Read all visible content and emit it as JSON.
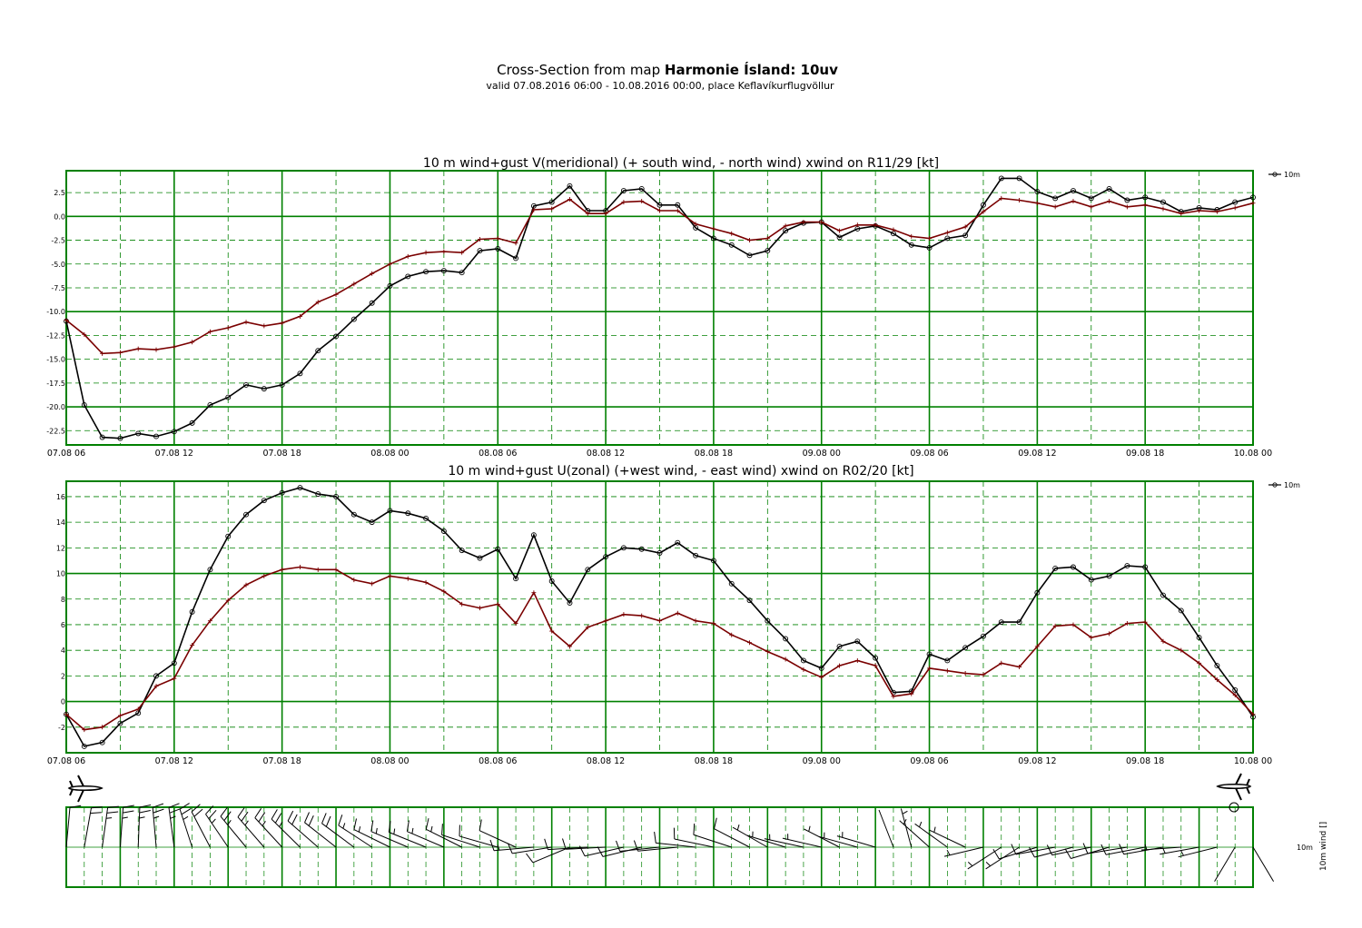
{
  "header": {
    "title_prefix": "Cross-Section from map ",
    "title_strong": "Harmonie Ísland:  10uv",
    "subtitle": "valid 07.08.2016 06:00 - 10.08.2016 00:00, place Keflavíkurflugvöllur"
  },
  "colors": {
    "grid": "#008000",
    "series_black": "#000000",
    "series_red": "#7a0000",
    "background": "#ffffff"
  },
  "time_axis": {
    "tick_labels": [
      "07.08 06",
      "07.08 12",
      "07.08 18",
      "08.08 00",
      "08.08 06",
      "08.08 12",
      "08.08 18",
      "09.08 00",
      "09.08 06",
      "09.08 12",
      "09.08 18",
      "10.08 00"
    ],
    "range_hours": [
      0,
      66
    ],
    "step_hours": 1
  },
  "chart_data": [
    {
      "type": "line",
      "title": "10 m wind+gust V(meridional) (+ south wind, - north wind) xwind on R11/29 [kt]",
      "legend": {
        "label": "10m",
        "placement": "top-right"
      },
      "ylim": [
        -24,
        4.8
      ],
      "yticks": [
        2.5,
        0.0,
        -2.5,
        -5.0,
        -7.5,
        -10.0,
        -12.5,
        -15.0,
        -17.5,
        -20.0,
        -22.5
      ],
      "ytick_labels": [
        "2.5",
        "0.0",
        "-2.5",
        "-5.0",
        "-7.5",
        "-10.0",
        "-12.5",
        "-15.0",
        "-17.5",
        "-20.0",
        "-22.5"
      ],
      "major_hlines": [
        0,
        -10,
        -20
      ],
      "series": [
        {
          "marker": "circle",
          "values": [
            -11.0,
            -19.8,
            -23.2,
            -23.3,
            -22.8,
            -23.1,
            -22.6,
            -21.7,
            -19.8,
            -19.0,
            -17.7,
            -18.1,
            -17.7,
            -16.5,
            -14.1,
            -12.6,
            -10.8,
            -9.1,
            -7.3,
            -6.3,
            -5.8,
            -5.7,
            -5.9,
            -3.6,
            -3.4,
            -4.4,
            1.1,
            1.5,
            3.2,
            0.6,
            0.6,
            2.7,
            2.9,
            1.2,
            1.2,
            -1.2,
            -2.3,
            -3.0,
            -4.1,
            -3.6,
            -1.5,
            -0.7,
            -0.6,
            -2.2,
            -1.3,
            -1.0,
            -1.8,
            -3.0,
            -3.3,
            -2.3,
            -2.0,
            1.2,
            4.0,
            4.0,
            2.6,
            1.9,
            2.7,
            1.9,
            2.9,
            1.7,
            2.0,
            1.5,
            0.5,
            0.9,
            0.7,
            1.5,
            2.0
          ]
        },
        {
          "marker": "plus",
          "values": [
            -10.9,
            -12.4,
            -14.4,
            -14.3,
            -13.9,
            -14.0,
            -13.7,
            -13.2,
            -12.1,
            -11.7,
            -11.1,
            -11.5,
            -11.2,
            -10.5,
            -9.0,
            -8.2,
            -7.1,
            -6.0,
            -5.0,
            -4.2,
            -3.8,
            -3.7,
            -3.8,
            -2.4,
            -2.3,
            -2.8,
            0.7,
            0.8,
            1.8,
            0.3,
            0.3,
            1.5,
            1.6,
            0.6,
            0.6,
            -0.8,
            -1.3,
            -1.8,
            -2.5,
            -2.3,
            -1.0,
            -0.6,
            -0.6,
            -1.5,
            -0.9,
            -0.9,
            -1.4,
            -2.1,
            -2.3,
            -1.7,
            -1.1,
            0.5,
            1.9,
            1.7,
            1.4,
            1.0,
            1.6,
            1.0,
            1.6,
            1.0,
            1.2,
            0.8,
            0.3,
            0.6,
            0.5,
            0.9,
            1.4
          ]
        }
      ]
    },
    {
      "type": "line",
      "title": "10 m wind+gust U(zonal) (+west wind, - east wind) xwind on R02/20 [kt]",
      "legend": {
        "label": "10m",
        "placement": "top-right"
      },
      "ylim": [
        -4,
        17.2
      ],
      "yticks": [
        16,
        14,
        12,
        10,
        8,
        6,
        4,
        2,
        0,
        -2
      ],
      "ytick_labels": [
        "16",
        "14",
        "12",
        "10",
        "8",
        "6",
        "4",
        "2",
        "0",
        "-2"
      ],
      "major_hlines": [
        10,
        0
      ],
      "series": [
        {
          "marker": "circle",
          "values": [
            -1.0,
            -3.5,
            -3.2,
            -1.7,
            -0.9,
            2.0,
            3.0,
            7.0,
            10.3,
            12.9,
            14.6,
            15.7,
            16.3,
            16.7,
            16.2,
            16.0,
            14.6,
            14.0,
            14.9,
            14.7,
            14.3,
            13.3,
            11.8,
            11.2,
            11.9,
            9.6,
            13.0,
            9.4,
            7.7,
            10.3,
            11.3,
            12.0,
            11.9,
            11.6,
            12.4,
            11.4,
            11.0,
            9.2,
            7.9,
            6.3,
            4.9,
            3.2,
            2.6,
            4.3,
            4.7,
            3.4,
            0.7,
            0.8,
            3.7,
            3.2,
            4.2,
            5.1,
            6.2,
            6.2,
            8.5,
            10.4,
            10.5,
            9.5,
            9.8,
            10.6,
            10.5,
            8.3,
            7.1,
            5.0,
            2.8,
            0.9,
            -1.2
          ]
        },
        {
          "marker": "plus",
          "values": [
            -1.0,
            -2.2,
            -2.0,
            -1.1,
            -0.6,
            1.2,
            1.8,
            4.4,
            6.3,
            7.9,
            9.1,
            9.8,
            10.3,
            10.5,
            10.3,
            10.3,
            9.5,
            9.2,
            9.8,
            9.6,
            9.3,
            8.6,
            7.6,
            7.3,
            7.6,
            6.1,
            8.5,
            5.5,
            4.3,
            5.8,
            6.3,
            6.8,
            6.7,
            6.3,
            6.9,
            6.3,
            6.1,
            5.2,
            4.6,
            3.9,
            3.3,
            2.5,
            1.9,
            2.8,
            3.2,
            2.8,
            0.4,
            0.6,
            2.6,
            2.4,
            2.2,
            2.1,
            3.0,
            2.7,
            4.3,
            5.9,
            6.0,
            5.0,
            5.3,
            6.1,
            6.2,
            4.7,
            4.0,
            3.0,
            1.7,
            0.5,
            -1.0
          ]
        }
      ]
    },
    {
      "type": "barbs",
      "side_label": "10m wind []",
      "row_label": "10m",
      "legend": {
        "placement": "right"
      },
      "u_source": "U(zonal) series above",
      "v_source": "V(meridional) series above"
    }
  ]
}
